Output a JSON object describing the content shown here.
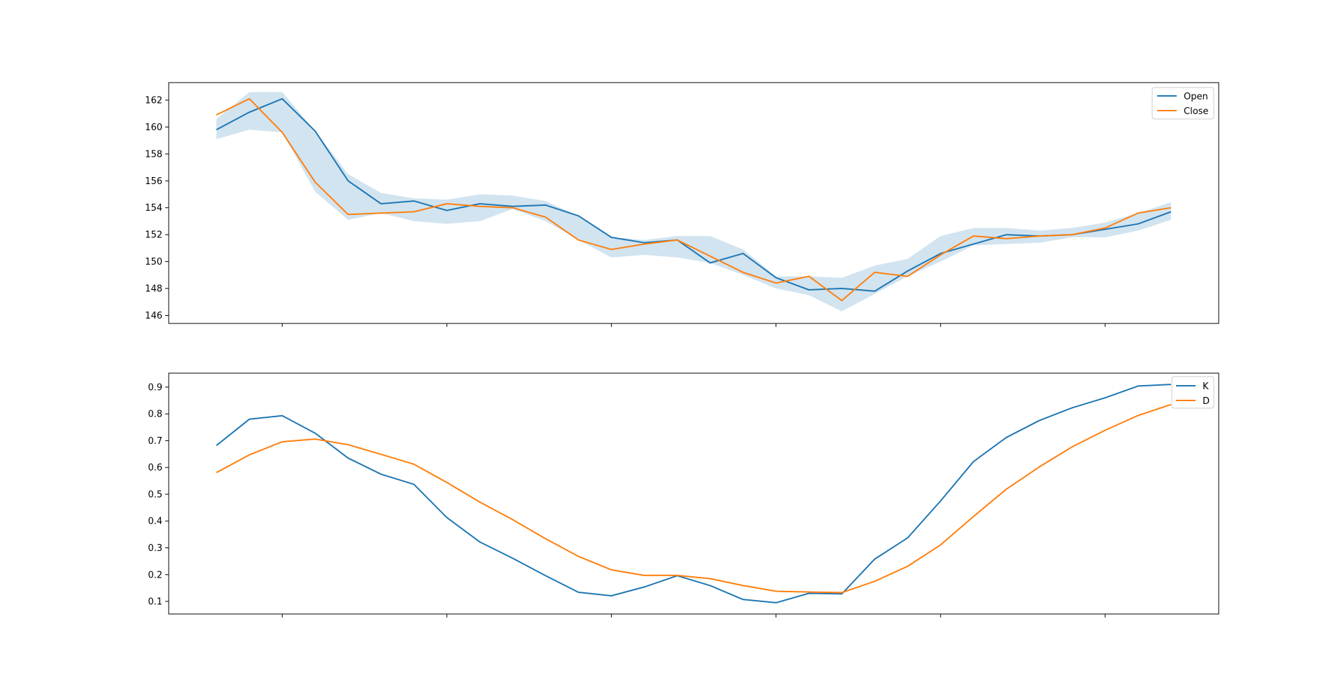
{
  "colors": {
    "blue": "#1f77b4",
    "orange": "#ff7f0e",
    "band": "#1f77b4",
    "axes": "#000000",
    "background": "#ffffff"
  },
  "chart_data": [
    {
      "type": "line",
      "title": "",
      "xlabel": "",
      "ylabel": "",
      "x": [
        0,
        1,
        2,
        3,
        4,
        5,
        6,
        7,
        8,
        9,
        10,
        11,
        12,
        13,
        14,
        15,
        16,
        17,
        18,
        19,
        20,
        21,
        22,
        23,
        24,
        25,
        26,
        27,
        28,
        29
      ],
      "xlim": [
        -1.45,
        30.45
      ],
      "ylim": [
        145.4,
        163.3
      ],
      "yticks": [
        146,
        148,
        150,
        152,
        154,
        156,
        158,
        160,
        162
      ],
      "ytick_labels": [
        "146",
        "148",
        "150",
        "152",
        "154",
        "156",
        "158",
        "160",
        "162"
      ],
      "xticks": [
        2,
        7,
        12,
        17,
        22,
        27
      ],
      "xtick_labels": [
        "",
        "",
        "",
        "",
        "",
        ""
      ],
      "grid": false,
      "legend_position": "top-right",
      "series": [
        {
          "name": "Open",
          "color": "#1f77b4",
          "values": [
            159.8,
            161.1,
            162.1,
            159.7,
            156.0,
            154.3,
            154.5,
            153.8,
            154.3,
            154.1,
            154.2,
            153.4,
            151.8,
            151.4,
            151.6,
            149.9,
            150.6,
            148.8,
            147.9,
            148.0,
            147.8,
            149.3,
            150.6,
            151.3,
            152.0,
            151.9,
            152.0,
            152.4,
            152.8,
            153.7
          ]
        },
        {
          "name": "Close",
          "color": "#ff7f0e",
          "values": [
            160.9,
            162.1,
            159.6,
            155.9,
            153.5,
            153.6,
            153.7,
            154.3,
            154.1,
            154.0,
            153.3,
            151.6,
            150.9,
            151.3,
            151.6,
            150.4,
            149.2,
            148.4,
            148.9,
            147.1,
            149.2,
            148.9,
            150.5,
            151.9,
            151.7,
            151.9,
            152.0,
            152.5,
            153.6,
            154.0
          ]
        }
      ],
      "band": {
        "color": "#1f77b4",
        "opacity": 0.2,
        "low": [
          159.1,
          159.8,
          159.6,
          155.2,
          153.1,
          153.6,
          153.0,
          152.8,
          153.0,
          153.9,
          153.0,
          151.6,
          150.3,
          150.5,
          150.3,
          149.9,
          149.0,
          148.0,
          147.5,
          146.3,
          147.6,
          148.9,
          150.0,
          151.2,
          151.3,
          151.4,
          151.8,
          151.8,
          152.3,
          153.1
        ],
        "high": [
          160.6,
          162.6,
          162.6,
          159.7,
          156.5,
          155.1,
          154.7,
          154.6,
          155.0,
          154.9,
          154.5,
          153.4,
          151.8,
          151.6,
          151.9,
          151.9,
          150.9,
          148.9,
          148.9,
          148.8,
          149.7,
          150.2,
          151.9,
          152.5,
          152.5,
          152.3,
          152.5,
          152.9,
          153.6,
          154.4
        ]
      }
    },
    {
      "type": "line",
      "title": "",
      "xlabel": "",
      "ylabel": "",
      "x": [
        0,
        1,
        2,
        3,
        4,
        5,
        6,
        7,
        8,
        9,
        10,
        11,
        12,
        13,
        14,
        15,
        16,
        17,
        18,
        19,
        20,
        21,
        22,
        23,
        24,
        25,
        26,
        27,
        28,
        29
      ],
      "xlim": [
        -1.45,
        30.45
      ],
      "ylim": [
        0.053,
        0.952
      ],
      "yticks": [
        0.1,
        0.2,
        0.3,
        0.4,
        0.5,
        0.6,
        0.7,
        0.8,
        0.9
      ],
      "ytick_labels": [
        "0.1",
        "0.2",
        "0.3",
        "0.4",
        "0.5",
        "0.6",
        "0.7",
        "0.8",
        "0.9"
      ],
      "xticks": [
        2,
        7,
        12,
        17,
        22,
        27
      ],
      "xtick_labels": [
        "",
        "",
        "",
        "",
        "",
        ""
      ],
      "grid": false,
      "legend_position": "top-right",
      "series": [
        {
          "name": "K",
          "color": "#1f77b4",
          "values": [
            0.682,
            0.78,
            0.793,
            0.728,
            0.635,
            0.575,
            0.537,
            0.413,
            0.322,
            0.261,
            0.196,
            0.134,
            0.121,
            0.154,
            0.196,
            0.159,
            0.107,
            0.095,
            0.13,
            0.128,
            0.258,
            0.337,
            0.475,
            0.622,
            0.712,
            0.775,
            0.823,
            0.86,
            0.904,
            0.91
          ]
        },
        {
          "name": "D",
          "color": "#ff7f0e",
          "values": [
            0.581,
            0.647,
            0.696,
            0.706,
            0.685,
            0.649,
            0.612,
            0.544,
            0.471,
            0.405,
            0.334,
            0.268,
            0.218,
            0.197,
            0.197,
            0.185,
            0.159,
            0.138,
            0.135,
            0.133,
            0.175,
            0.231,
            0.311,
            0.417,
            0.519,
            0.602,
            0.677,
            0.739,
            0.794,
            0.835
          ]
        }
      ]
    }
  ]
}
